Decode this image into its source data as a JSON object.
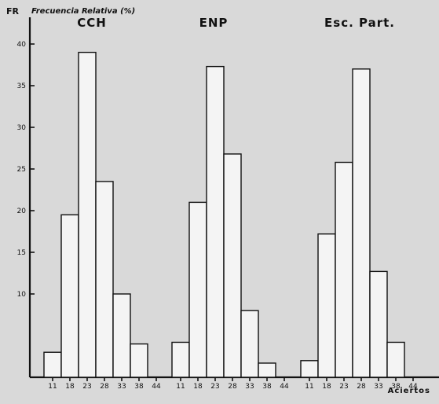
{
  "chart_data": {
    "type": "bar",
    "ylabel_short": "FR",
    "ylabel": "Frecuencia Relativa (%)",
    "xlabel": "Aciertos",
    "ylim": [
      0,
      40
    ],
    "yticks": [
      10,
      15,
      20,
      25,
      30,
      35,
      40
    ],
    "categories": [
      "11",
      "18",
      "23",
      "28",
      "33",
      "38",
      "44"
    ],
    "panels": [
      {
        "title": "CCH",
        "values": [
          3,
          19.5,
          39,
          23.5,
          10,
          4,
          0
        ]
      },
      {
        "title": "ENP",
        "values": [
          4.2,
          21,
          37.3,
          26.8,
          8,
          1.7,
          0
        ]
      },
      {
        "title": "Esc. Part.",
        "values": [
          2,
          17.2,
          25.8,
          37,
          12.7,
          4.2,
          0
        ]
      }
    ]
  },
  "colors": {
    "background": "#d9d9d9",
    "bar_fill": "#f4f4f4",
    "ink": "#111111"
  }
}
